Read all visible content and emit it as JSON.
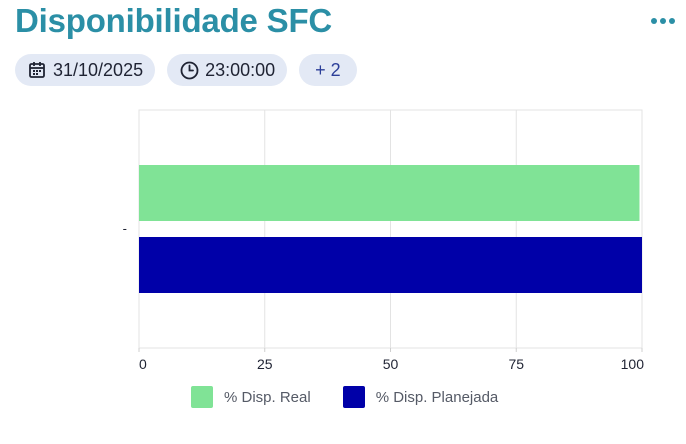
{
  "header": {
    "title": "Disponibilidade SFC",
    "more_icon": "more-horizontal-icon"
  },
  "filters": {
    "date": {
      "icon": "calendar-icon",
      "label": "31/10/2025"
    },
    "time": {
      "icon": "clock-icon",
      "label": "23:00:00"
    },
    "extra": {
      "icon": "plus-icon",
      "label": "+ 2"
    }
  },
  "colors": {
    "title": "#2b8fa6",
    "chip_bg": "#e3e9f5",
    "real": "#80e396",
    "planejada": "#0000a8"
  },
  "chart_data": {
    "type": "bar",
    "orientation": "horizontal",
    "categories": [
      "-"
    ],
    "series": [
      {
        "name": "% Disp. Real",
        "values": [
          99.5
        ],
        "color": "#80e396"
      },
      {
        "name": "% Disp. Planejada",
        "values": [
          100
        ],
        "color": "#0000a8"
      }
    ],
    "xlim": [
      0,
      100
    ],
    "xticks": [
      "0",
      "25",
      "50",
      "75",
      "100"
    ],
    "grid": true,
    "legend": "bottom-center"
  }
}
